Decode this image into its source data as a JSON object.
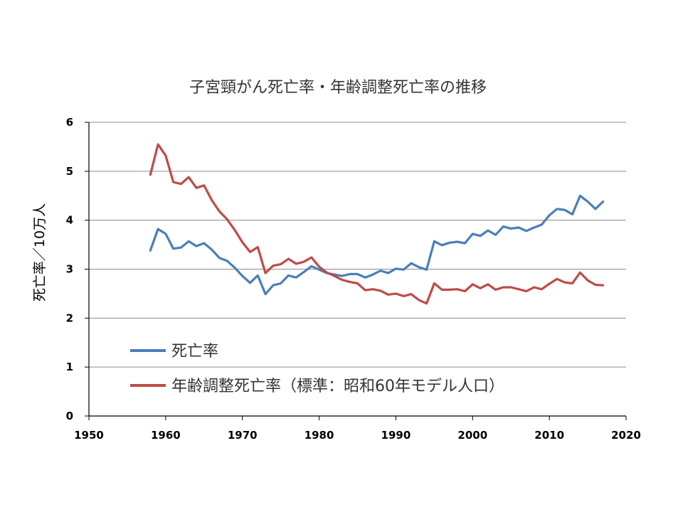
{
  "chart_data": {
    "type": "line",
    "title": "子宮頸がん死亡率・年齢調整死亡率の推移",
    "xlabel": "",
    "ylabel": "死亡率／10万人",
    "xlim": [
      1950,
      2020
    ],
    "ylim": [
      0,
      6
    ],
    "xticks": [
      1950,
      1960,
      1970,
      1980,
      1990,
      2000,
      2010,
      2020
    ],
    "yticks": [
      0,
      1,
      2,
      3,
      4,
      5,
      6
    ],
    "grid": "horizontal",
    "legend_position": "bottom-left inside",
    "x": [
      1958,
      1959,
      1960,
      1961,
      1962,
      1963,
      1964,
      1965,
      1966,
      1967,
      1968,
      1969,
      1970,
      1971,
      1972,
      1973,
      1974,
      1975,
      1976,
      1977,
      1978,
      1979,
      1980,
      1981,
      1982,
      1983,
      1984,
      1985,
      1986,
      1987,
      1988,
      1989,
      1990,
      1991,
      1992,
      1993,
      1994,
      1995,
      1996,
      1997,
      1998,
      1999,
      2000,
      2001,
      2002,
      2003,
      2004,
      2005,
      2006,
      2007,
      2008,
      2009,
      2010,
      2011,
      2012,
      2013,
      2014,
      2015,
      2016,
      2017
    ],
    "series": [
      {
        "name": "死亡率",
        "color": "#4a7ebb",
        "values": [
          3.38,
          3.82,
          3.72,
          3.42,
          3.44,
          3.57,
          3.47,
          3.53,
          3.4,
          3.23,
          3.17,
          3.03,
          2.86,
          2.72,
          2.87,
          2.49,
          2.67,
          2.71,
          2.87,
          2.83,
          2.94,
          3.06,
          2.99,
          2.92,
          2.89,
          2.86,
          2.9,
          2.9,
          2.83,
          2.89,
          2.97,
          2.92,
          3.01,
          2.99,
          3.12,
          3.04,
          2.99,
          3.57,
          3.49,
          3.54,
          3.56,
          3.53,
          3.72,
          3.68,
          3.79,
          3.7,
          3.87,
          3.83,
          3.85,
          3.78,
          3.85,
          3.91,
          4.1,
          4.23,
          4.21,
          4.12,
          4.5,
          4.38,
          4.23,
          4.38
        ]
      },
      {
        "name": "年齢調整死亡率（標準：昭和60年モデル人口）",
        "color": "#be4b48",
        "values": [
          4.93,
          5.55,
          5.32,
          4.78,
          4.74,
          4.88,
          4.66,
          4.71,
          4.41,
          4.18,
          4.02,
          3.8,
          3.55,
          3.35,
          3.45,
          2.92,
          3.07,
          3.1,
          3.21,
          3.11,
          3.15,
          3.24,
          3.05,
          2.93,
          2.86,
          2.78,
          2.74,
          2.71,
          2.57,
          2.59,
          2.56,
          2.48,
          2.5,
          2.45,
          2.49,
          2.37,
          2.3,
          2.71,
          2.58,
          2.58,
          2.59,
          2.55,
          2.69,
          2.61,
          2.69,
          2.58,
          2.63,
          2.63,
          2.59,
          2.55,
          2.63,
          2.59,
          2.7,
          2.8,
          2.73,
          2.71,
          2.93,
          2.77,
          2.68,
          2.67
        ]
      }
    ]
  }
}
